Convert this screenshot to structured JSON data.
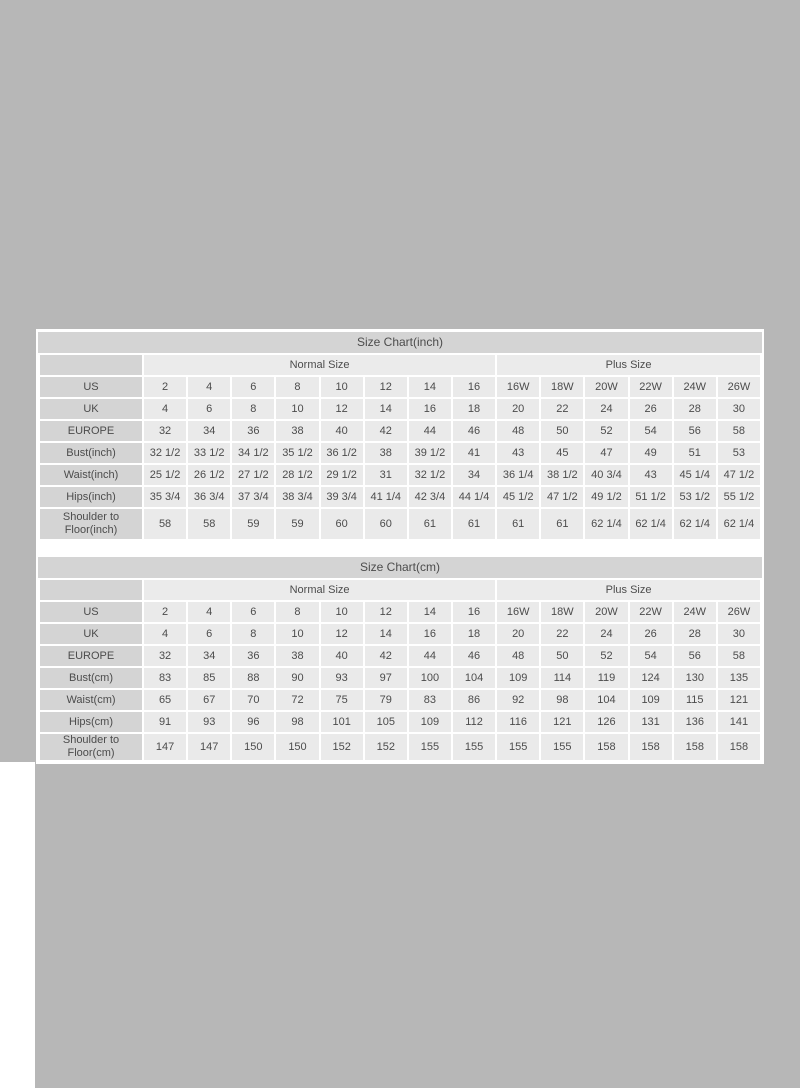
{
  "colors": {
    "page_background": "#b7b7b7",
    "panel_background": "#ffffff",
    "title_bar": "#d4d4d4",
    "label_cell": "#d4d4d4",
    "value_cell": "#eaeaea",
    "text": "#4c4c4c"
  },
  "tables": [
    {
      "id": "inch",
      "title": "Size Chart(inch)",
      "group_headers": [
        {
          "label": "Normal Size",
          "span": 8
        },
        {
          "label": "Plus Size",
          "span": 6
        }
      ],
      "rows": [
        {
          "label": "US",
          "values": [
            "2",
            "4",
            "6",
            "8",
            "10",
            "12",
            "14",
            "16",
            "16W",
            "18W",
            "20W",
            "22W",
            "24W",
            "26W"
          ]
        },
        {
          "label": "UK",
          "values": [
            "4",
            "6",
            "8",
            "10",
            "12",
            "14",
            "16",
            "18",
            "20",
            "22",
            "24",
            "26",
            "28",
            "30"
          ]
        },
        {
          "label": "EUROPE",
          "values": [
            "32",
            "34",
            "36",
            "38",
            "40",
            "42",
            "44",
            "46",
            "48",
            "50",
            "52",
            "54",
            "56",
            "58"
          ]
        },
        {
          "label": "Bust(inch)",
          "values": [
            "32 1/2",
            "33 1/2",
            "34 1/2",
            "35 1/2",
            "36 1/2",
            "38",
            "39 1/2",
            "41",
            "43",
            "45",
            "47",
            "49",
            "51",
            "53"
          ]
        },
        {
          "label": "Waist(inch)",
          "values": [
            "25 1/2",
            "26 1/2",
            "27 1/2",
            "28 1/2",
            "29 1/2",
            "31",
            "32 1/2",
            "34",
            "36 1/4",
            "38 1/2",
            "40 3/4",
            "43",
            "45 1/4",
            "47 1/2"
          ]
        },
        {
          "label": "Hips(inch)",
          "values": [
            "35 3/4",
            "36 3/4",
            "37 3/4",
            "38 3/4",
            "39 3/4",
            "41 1/4",
            "42 3/4",
            "44 1/4",
            "45 1/2",
            "47 1/2",
            "49 1/2",
            "51 1/2",
            "53 1/2",
            "55 1/2"
          ]
        },
        {
          "label": "Shoulder to Floor(inch)",
          "values": [
            "58",
            "58",
            "59",
            "59",
            "60",
            "60",
            "61",
            "61",
            "61",
            "61",
            "62 1/4",
            "62 1/4",
            "62 1/4",
            "62 1/4"
          ]
        }
      ]
    },
    {
      "id": "cm",
      "title": "Size Chart(cm)",
      "group_headers": [
        {
          "label": "Normal Size",
          "span": 8
        },
        {
          "label": "Plus Size",
          "span": 6
        }
      ],
      "rows": [
        {
          "label": "US",
          "values": [
            "2",
            "4",
            "6",
            "8",
            "10",
            "12",
            "14",
            "16",
            "16W",
            "18W",
            "20W",
            "22W",
            "24W",
            "26W"
          ]
        },
        {
          "label": "UK",
          "values": [
            "4",
            "6",
            "8",
            "10",
            "12",
            "14",
            "16",
            "18",
            "20",
            "22",
            "24",
            "26",
            "28",
            "30"
          ]
        },
        {
          "label": "EUROPE",
          "values": [
            "32",
            "34",
            "36",
            "38",
            "40",
            "42",
            "44",
            "46",
            "48",
            "50",
            "52",
            "54",
            "56",
            "58"
          ]
        },
        {
          "label": "Bust(cm)",
          "values": [
            "83",
            "85",
            "88",
            "90",
            "93",
            "97",
            "100",
            "104",
            "109",
            "114",
            "119",
            "124",
            "130",
            "135"
          ]
        },
        {
          "label": "Waist(cm)",
          "values": [
            "65",
            "67",
            "70",
            "72",
            "75",
            "79",
            "83",
            "86",
            "92",
            "98",
            "104",
            "109",
            "115",
            "121"
          ]
        },
        {
          "label": "Hips(cm)",
          "values": [
            "91",
            "93",
            "96",
            "98",
            "101",
            "105",
            "109",
            "112",
            "116",
            "121",
            "126",
            "131",
            "136",
            "141"
          ]
        },
        {
          "label": "Shoulder to Floor(cm)",
          "values": [
            "147",
            "147",
            "150",
            "150",
            "152",
            "152",
            "155",
            "155",
            "155",
            "155",
            "158",
            "158",
            "158",
            "158"
          ]
        }
      ]
    }
  ]
}
